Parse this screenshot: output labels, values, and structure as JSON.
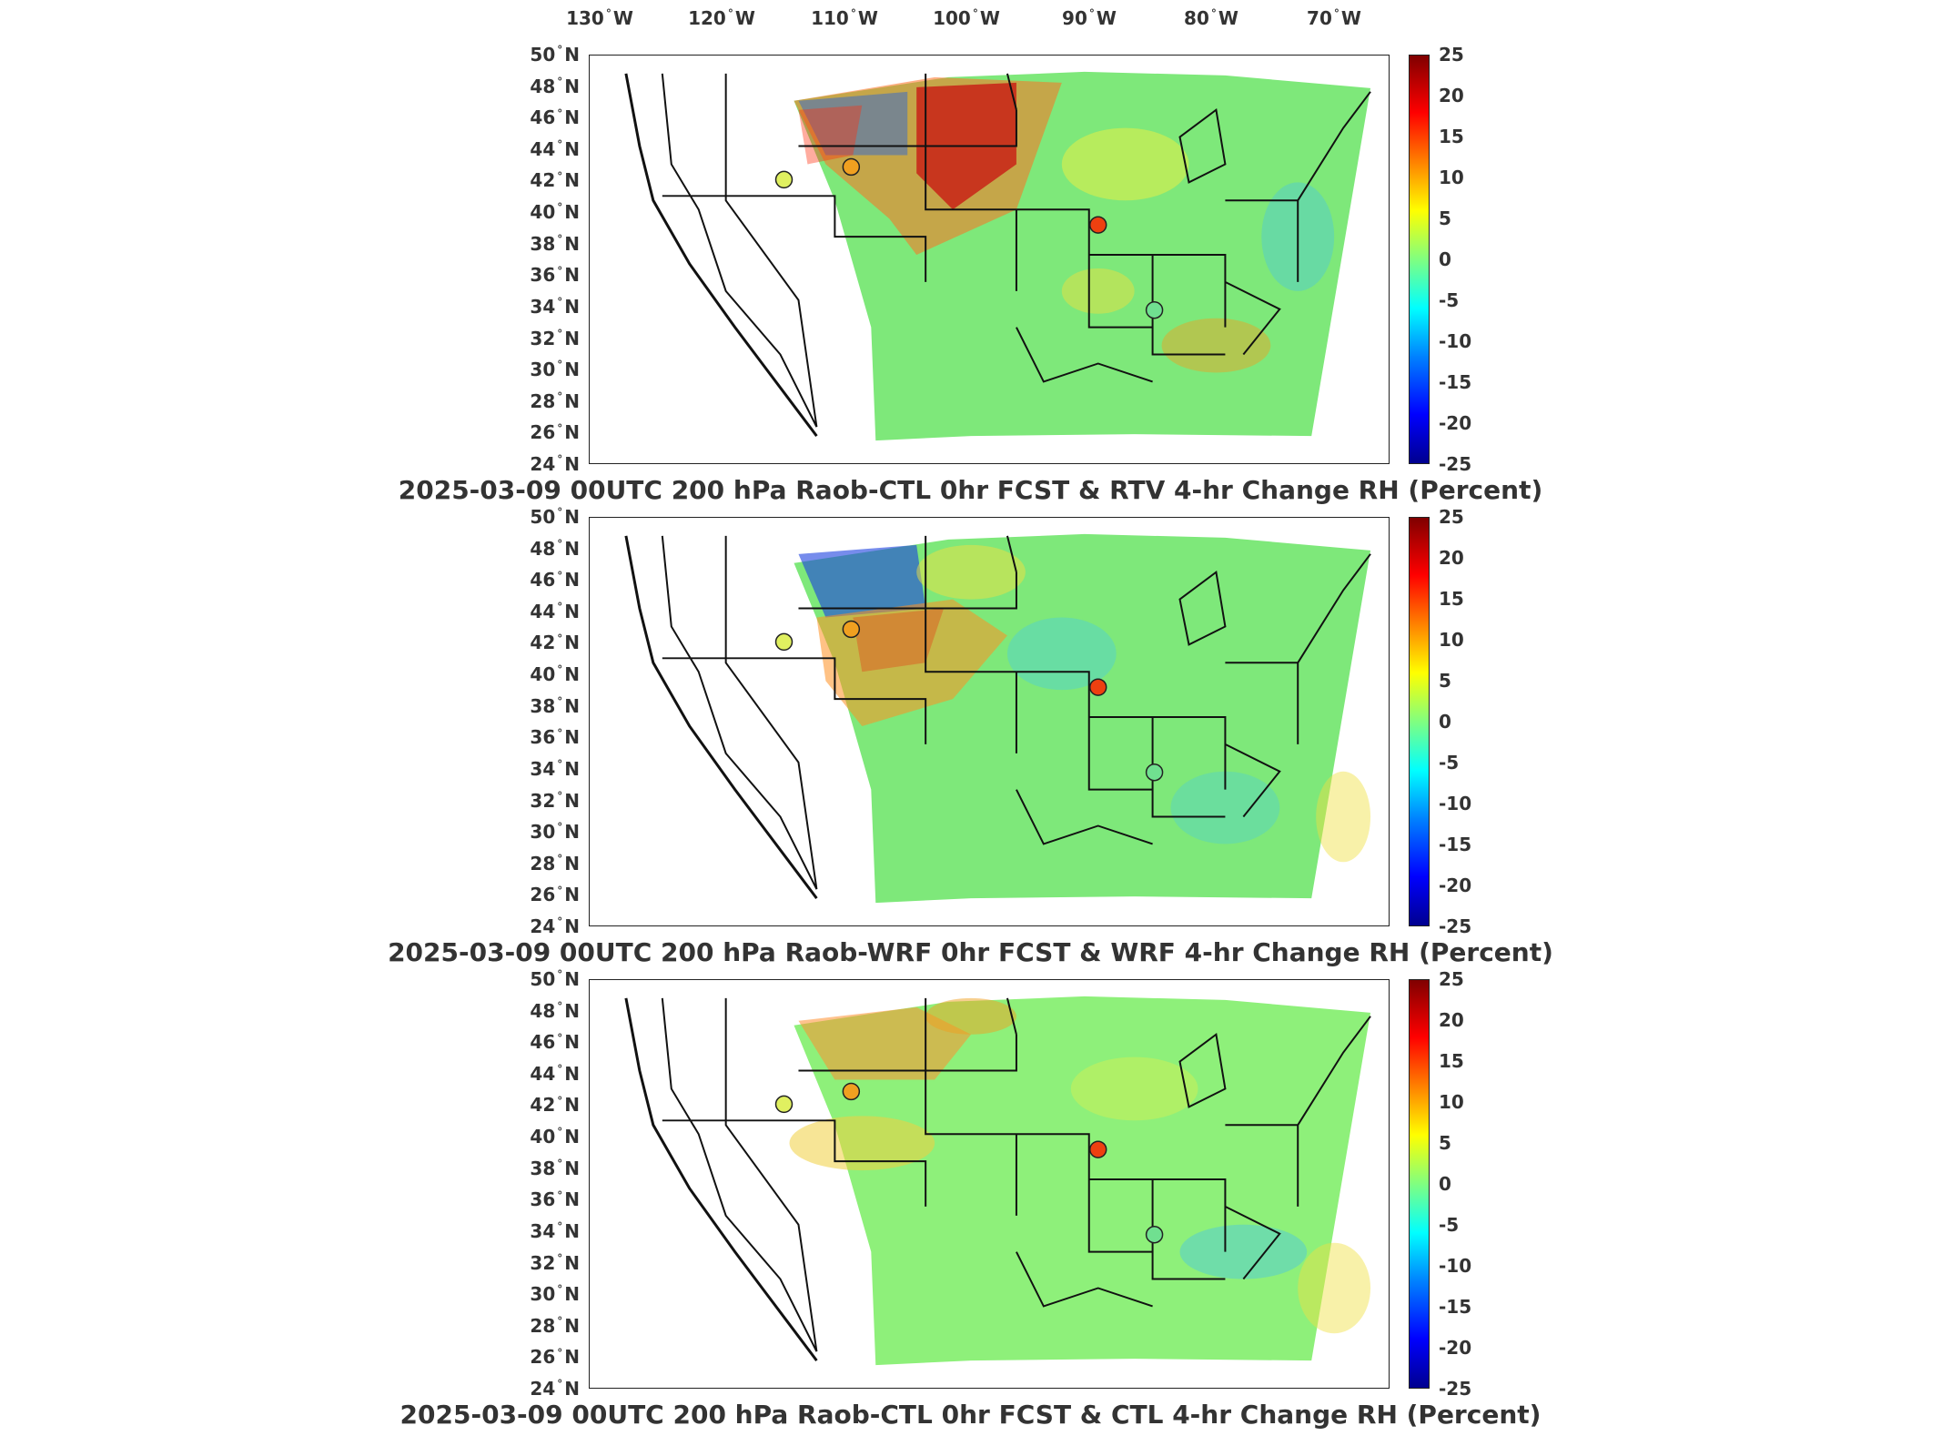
{
  "longitude_labels": [
    {
      "value": "130",
      "hem": "W"
    },
    {
      "value": "120",
      "hem": "W"
    },
    {
      "value": "110",
      "hem": "W"
    },
    {
      "value": "100",
      "hem": "W"
    },
    {
      "value": "90",
      "hem": "W"
    },
    {
      "value": "80",
      "hem": "W"
    },
    {
      "value": "70",
      "hem": "W"
    }
  ],
  "latitude_labels": [
    {
      "value": "50",
      "hem": "N"
    },
    {
      "value": "48",
      "hem": "N"
    },
    {
      "value": "46",
      "hem": "N"
    },
    {
      "value": "44",
      "hem": "N"
    },
    {
      "value": "42",
      "hem": "N"
    },
    {
      "value": "40",
      "hem": "N"
    },
    {
      "value": "38",
      "hem": "N"
    },
    {
      "value": "36",
      "hem": "N"
    },
    {
      "value": "34",
      "hem": "N"
    },
    {
      "value": "32",
      "hem": "N"
    },
    {
      "value": "30",
      "hem": "N"
    },
    {
      "value": "28",
      "hem": "N"
    },
    {
      "value": "26",
      "hem": "N"
    },
    {
      "value": "24",
      "hem": "N"
    }
  ],
  "colorbar": {
    "ticks": [
      "25",
      "20",
      "15",
      "10",
      "5",
      "0",
      "-5",
      "-10",
      "-15",
      "-20",
      "-25"
    ],
    "range": [
      -25,
      25
    ],
    "colormap": "jet"
  },
  "panels": [
    {
      "title": "2025-03-09 00UTC 200 hPa Raob-CTL 0hr FCST & RTV 4-hr Change RH (Percent)"
    },
    {
      "title": "2025-03-09 00UTC 200 hPa Raob-WRF 0hr FCST & WRF 4-hr Change RH (Percent)"
    },
    {
      "title": "2025-03-09 00UTC 200 hPa Raob-CTL 0hr FCST & CTL 4-hr Change RH (Percent)"
    }
  ],
  "colors": {
    "field_background": "#7ee87a",
    "marker_orange": "#f0a020",
    "marker_red": "#ee4010",
    "marker_yellow": "#d8ee50",
    "marker_green": "#70e090"
  }
}
